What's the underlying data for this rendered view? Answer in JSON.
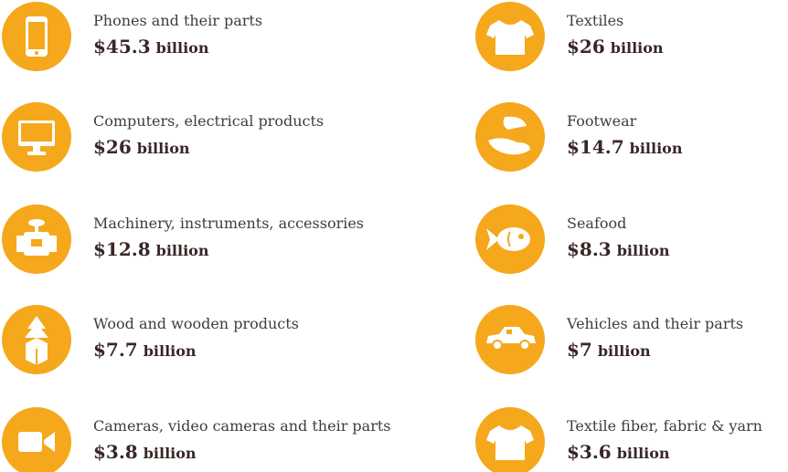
{
  "items": [
    {
      "label": "Phones and their parts",
      "amount": "$45.3",
      "unit": "billion"
    },
    {
      "label": "Computers, electrical products",
      "amount": "$26",
      "unit": "billion"
    },
    {
      "label": "Machinery, instruments, accessories",
      "amount": "$12.8",
      "unit": "billion"
    },
    {
      "label": "Wood and wooden products",
      "amount": "$7.7",
      "unit": "billion"
    },
    {
      "label": "Cameras, video cameras and their parts",
      "amount": "$3.8",
      "unit": "billion"
    },
    {
      "label": "Textiles",
      "amount": "$26",
      "unit": "billion"
    },
    {
      "label": "Footwear",
      "amount": "$14.7",
      "unit": "billion"
    },
    {
      "label": "Seafood",
      "amount": "$8.3",
      "unit": "billion"
    },
    {
      "label": "Vehicles and their parts",
      "amount": "$7",
      "unit": "billion"
    },
    {
      "label": "Textile fiber, fabric & yarn",
      "amount": "$3.6",
      "unit": "billion"
    }
  ]
}
